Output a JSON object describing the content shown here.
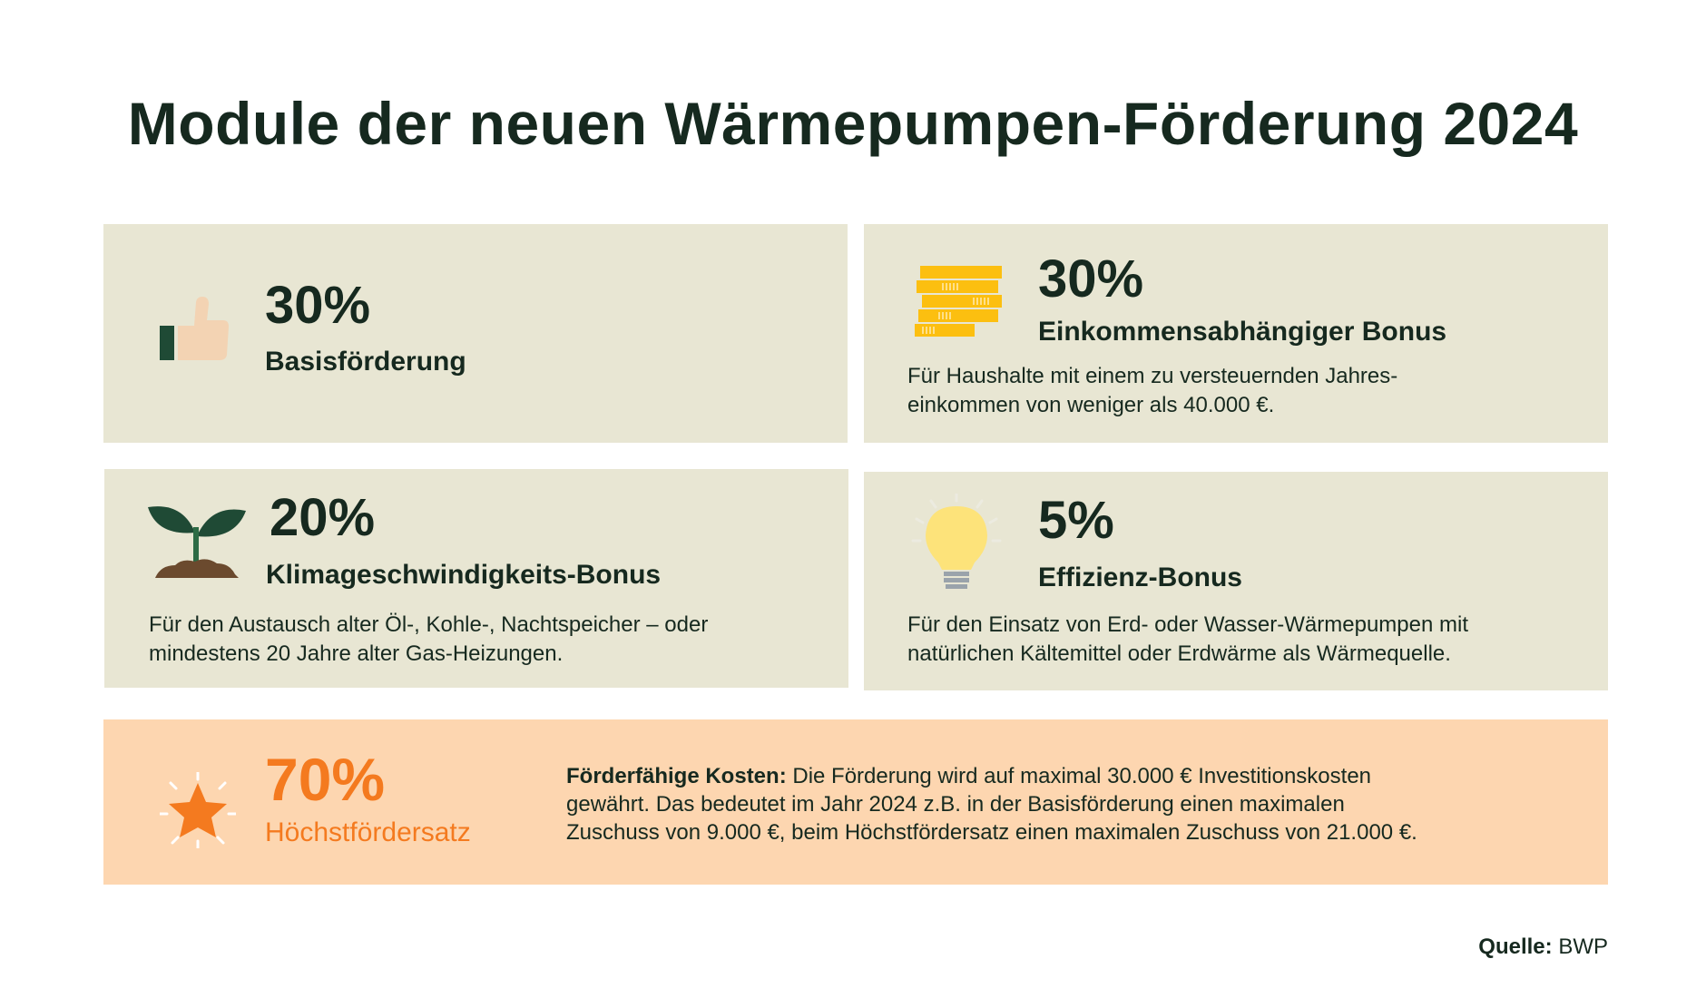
{
  "title": "Module der neuen Wärmepumpen-Förderung 2024",
  "cards": [
    {
      "percent": "30%",
      "label": "Basisförderung",
      "icon": "thumbs-up-icon"
    },
    {
      "percent": "30%",
      "label": "Einkommensabhängiger Bonus",
      "icon": "coins-icon",
      "desc_line1": "Für Haushalte mit einem zu versteuernden Jahres-",
      "desc_line2": "einkommen von weniger als 40.000 €."
    },
    {
      "percent": "20%",
      "label": "Klimageschwindigkeits-Bonus",
      "icon": "plant-icon",
      "desc_line1": "Für den Austausch alter Öl-, Kohle-, Nachtspeicher – oder",
      "desc_line2": "mindestens 20 Jahre alter Gas-Heizungen."
    },
    {
      "percent": "5%",
      "label": "Effizienz-Bonus",
      "icon": "lightbulb-icon",
      "desc_line1": "Für den Einsatz von Erd- oder Wasser-Wärmepumpen mit",
      "desc_line2": "natürlichen Kältemittel oder Erdwärme als Wärmequelle."
    }
  ],
  "max": {
    "percent": "70%",
    "label": "Höchstfördersatz",
    "icon": "star-icon",
    "bold_lead": "Förderfähige Kosten:",
    "line1_rest": " Die Förderung wird auf maximal 30.000 € Investitionskosten",
    "line2": "gewährt. Das bedeutet im Jahr 2024 z.B. in der Basisförderung einen  maximalen",
    "line3": "Zuschuss von 9.000 €, beim Höchstfördersatz einen maximalen Zuschuss von 21.000 €."
  },
  "source": {
    "label": "Quelle:",
    "value": "BWP"
  },
  "colors": {
    "card_bg": "#e8e6d3",
    "highlight_bg": "#fdd6b0",
    "accent": "#f47a1f",
    "text": "#16291f"
  }
}
